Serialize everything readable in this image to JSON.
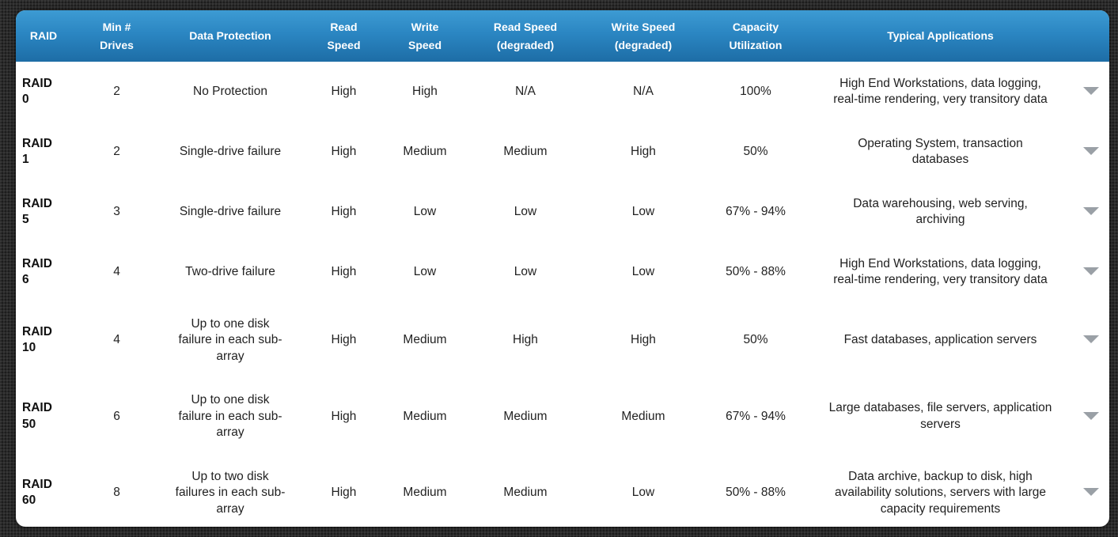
{
  "headers": {
    "raid": "RAID",
    "min_drives_l1": "Min #",
    "min_drives_l2": "Drives",
    "data_protection": "Data Protection",
    "read_speed_l1": "Read",
    "read_speed_l2": "Speed",
    "write_speed_l1": "Write",
    "write_speed_l2": "Speed",
    "read_deg_l1": "Read Speed",
    "read_deg_l2": "(degraded)",
    "write_deg_l1": "Write Speed",
    "write_deg_l2": "(degraded)",
    "capacity_l1": "Capacity",
    "capacity_l2": "Utilization",
    "applications": "Typical Applications"
  },
  "rows": [
    {
      "raid_l1": "RAID",
      "raid_l2": "0",
      "min_drives": "2",
      "protection": "No Protection",
      "read": "High",
      "write": "High",
      "read_deg": "N/A",
      "write_deg": "N/A",
      "capacity": "100%",
      "applications": "High End Workstations, data logging, real-time rendering, very transitory data"
    },
    {
      "raid_l1": "RAID",
      "raid_l2": "1",
      "min_drives": "2",
      "protection": "Single-drive failure",
      "read": "High",
      "write": "Medium",
      "read_deg": "Medium",
      "write_deg": "High",
      "capacity": "50%",
      "applications": "Operating System, transaction databases"
    },
    {
      "raid_l1": "RAID",
      "raid_l2": "5",
      "min_drives": "3",
      "protection": "Single-drive failure",
      "read": "High",
      "write": "Low",
      "read_deg": "Low",
      "write_deg": "Low",
      "capacity": "67% - 94%",
      "applications": "Data warehousing, web serving, archiving"
    },
    {
      "raid_l1": "RAID",
      "raid_l2": "6",
      "min_drives": "4",
      "protection": "Two-drive failure",
      "read": "High",
      "write": "Low",
      "read_deg": "Low",
      "write_deg": "Low",
      "capacity": "50% - 88%",
      "applications": "High End Workstations, data logging, real-time rendering, very transitory data"
    },
    {
      "raid_l1": "RAID",
      "raid_l2": "10",
      "min_drives": "4",
      "protection": "Up to one disk failure in each sub-array",
      "read": "High",
      "write": "Medium",
      "read_deg": "High",
      "write_deg": "High",
      "capacity": "50%",
      "applications": "Fast databases, application servers"
    },
    {
      "raid_l1": "RAID",
      "raid_l2": "50",
      "min_drives": "6",
      "protection": "Up to one disk failure in each sub-array",
      "read": "High",
      "write": "Medium",
      "read_deg": "Medium",
      "write_deg": "Medium",
      "capacity": "67% - 94%",
      "applications": "Large databases, file servers, application servers"
    },
    {
      "raid_l1": "RAID",
      "raid_l2": "60",
      "min_drives": "8",
      "protection": "Up to two disk failures in each sub-array",
      "read": "High",
      "write": "Medium",
      "read_deg": "Medium",
      "write_deg": "Low",
      "capacity": "50% - 88%",
      "applications": "Data archive, backup to disk, high availability solutions, servers with large capacity requirements"
    }
  ],
  "icons": {
    "row_toggle": "chevron-down-icon"
  },
  "colors": {
    "header_top": "#3d9bd3",
    "header_bottom": "#1d6da6",
    "chevron": "#9aa0a6",
    "background": "#2b2b2b"
  }
}
